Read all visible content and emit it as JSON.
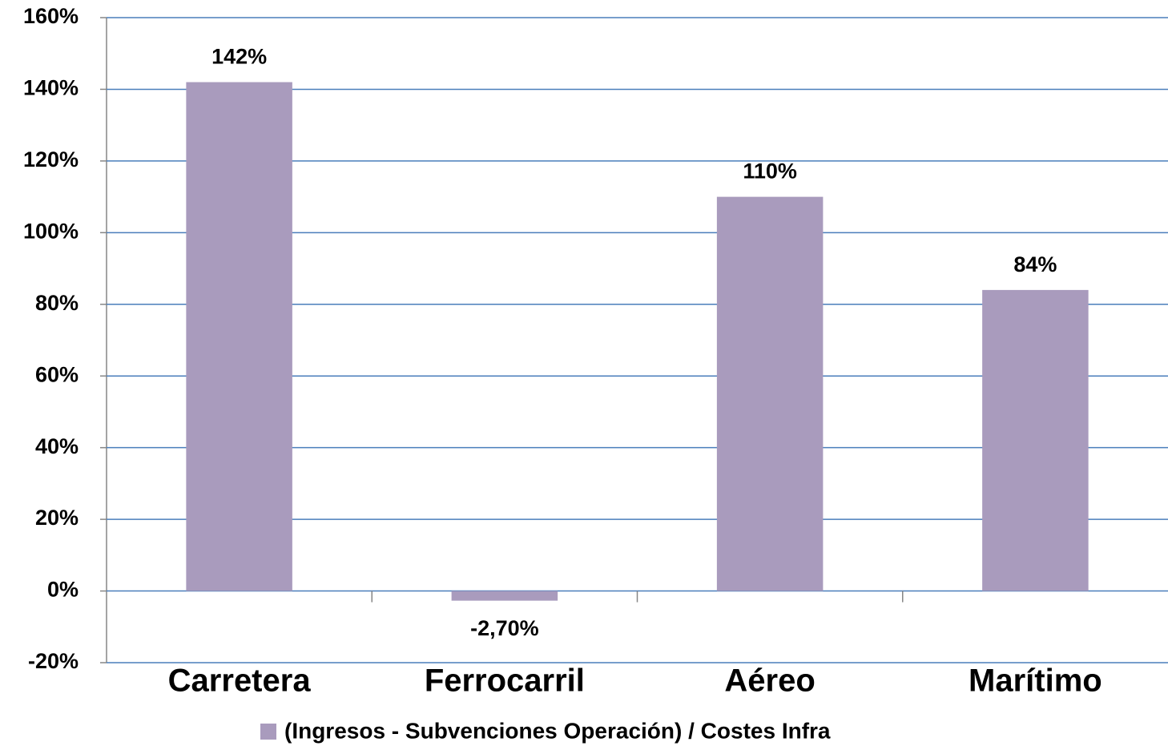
{
  "chart_data": {
    "type": "bar",
    "categories": [
      "Carretera",
      "Ferrocarril",
      "Aéreo",
      "Marítimo"
    ],
    "series": [
      {
        "name": "(Ingresos - Subvenciones Operación) / Costes Infra",
        "color": "#a99bbd",
        "values": [
          142,
          -2.7,
          110,
          84
        ],
        "value_labels": [
          "142%",
          "-2,70%",
          "110%",
          "84%"
        ]
      }
    ],
    "ylim": [
      -20,
      160
    ],
    "yticks": [
      {
        "value": -20,
        "label": "-20%"
      },
      {
        "value": 0,
        "label": "0%"
      },
      {
        "value": 20,
        "label": "20%"
      },
      {
        "value": 40,
        "label": "40%"
      },
      {
        "value": 60,
        "label": "60%"
      },
      {
        "value": 80,
        "label": "80%"
      },
      {
        "value": 100,
        "label": "100%"
      },
      {
        "value": 120,
        "label": "120%"
      },
      {
        "value": 140,
        "label": "140%"
      },
      {
        "value": 160,
        "label": "160%"
      }
    ],
    "grid": true,
    "legend": "bottom"
  }
}
